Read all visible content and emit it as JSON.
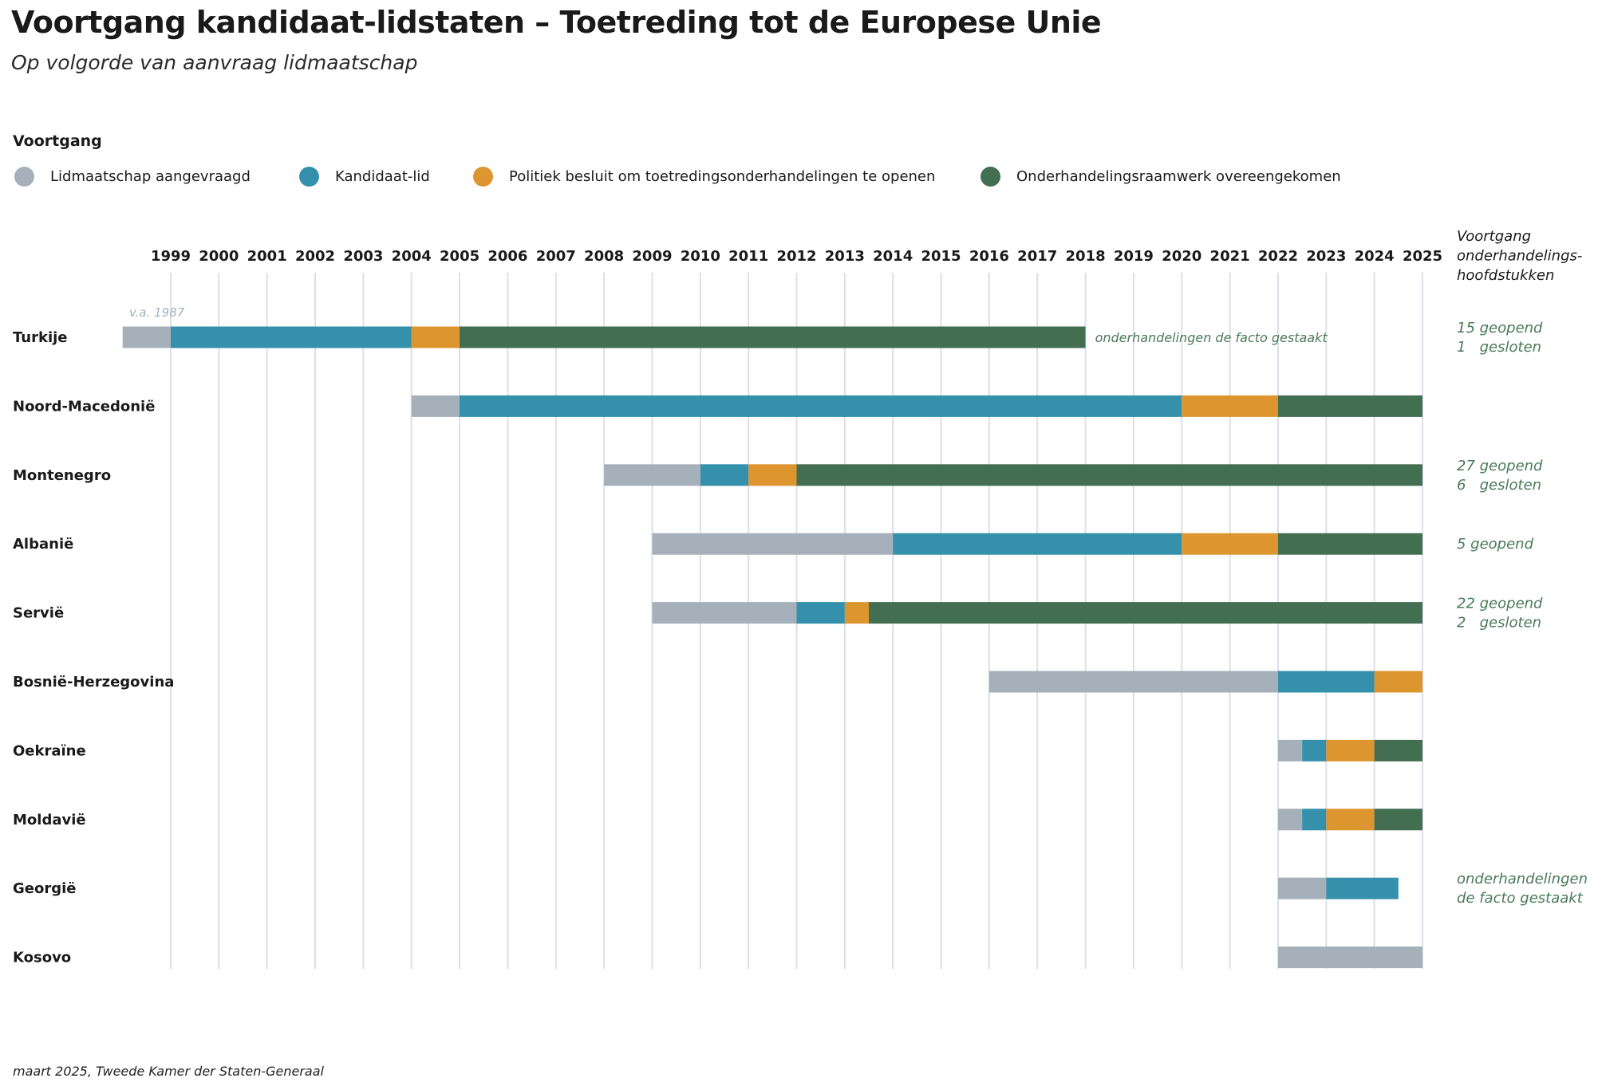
{
  "title": "Voortgang kandidaat-lidstaten – Toetreding tot de Europese Unie",
  "subtitle": "Op volgorde van aanvraag lidmaatschap",
  "footer": "maart 2025, Tweede Kamer der Staten-Generaal",
  "legend": {
    "title": "Voortgang",
    "items": [
      {
        "key": "aangevraagd",
        "label": "Lidmaatschap aangevraagd",
        "color": "#A5B0BA"
      },
      {
        "key": "kandidaat",
        "label": "Kandidaat-lid",
        "color": "#3490AB"
      },
      {
        "key": "besluit",
        "label": "Politiek besluit om toetredingsonderhandelingen te openen",
        "color": "#DD952F"
      },
      {
        "key": "raamwerk",
        "label": "Onderhandelingsraamwerk overeengekomen",
        "color": "#436E52"
      }
    ]
  },
  "chart_data": {
    "type": "bar",
    "subtype": "horizontal-stacked-timeline",
    "title": "Voortgang kandidaat-lidstaten – Toetreding tot de Europese Unie",
    "subtitle": "Op volgorde van aanvraag lidmaatschap",
    "xlabel": "",
    "ylabel": "",
    "xlim": [
      1999,
      2025
    ],
    "x_ticks": [
      1999,
      2000,
      2001,
      2002,
      2003,
      2004,
      2005,
      2006,
      2007,
      2008,
      2009,
      2010,
      2011,
      2012,
      2013,
      2014,
      2015,
      2016,
      2017,
      2018,
      2019,
      2020,
      2021,
      2022,
      2023,
      2024,
      2025
    ],
    "grid": true,
    "legend_position": "top-left",
    "right_column_header": [
      "Voortgang",
      "onderhandelings-",
      "hoofdstukken"
    ],
    "text_color_notes": "#4A7A5A",
    "text_color_early": "#A5B0BA",
    "categories": [
      "Turkije",
      "Noord-Macedonië",
      "Montenegro",
      "Albanië",
      "Servië",
      "Bosnië-Herzegovina",
      "Oekraïne",
      "Moldavië",
      "Georgië",
      "Kosovo"
    ],
    "rows": [
      {
        "country": "Turkije",
        "segments": [
          {
            "stage": "aangevraagd",
            "start": 1998,
            "end": 1999
          },
          {
            "stage": "kandidaat",
            "start": 1999,
            "end": 2004
          },
          {
            "stage": "besluit",
            "start": 2004,
            "end": 2005
          },
          {
            "stage": "raamwerk",
            "start": 2005,
            "end": 2018
          }
        ],
        "early_note": "v.a. 1987",
        "inline_note": "onderhandelingen de facto gestaakt",
        "chapters": [
          "15 geopend",
          "1   gesloten"
        ]
      },
      {
        "country": "Noord-Macedonië",
        "segments": [
          {
            "stage": "aangevraagd",
            "start": 2004,
            "end": 2005
          },
          {
            "stage": "kandidaat",
            "start": 2005,
            "end": 2020
          },
          {
            "stage": "besluit",
            "start": 2020,
            "end": 2022
          },
          {
            "stage": "raamwerk",
            "start": 2022,
            "end": 2025
          }
        ],
        "chapters": []
      },
      {
        "country": "Montenegro",
        "segments": [
          {
            "stage": "aangevraagd",
            "start": 2008,
            "end": 2010
          },
          {
            "stage": "kandidaat",
            "start": 2010,
            "end": 2011
          },
          {
            "stage": "besluit",
            "start": 2011,
            "end": 2012
          },
          {
            "stage": "raamwerk",
            "start": 2012,
            "end": 2025
          }
        ],
        "chapters": [
          "27 geopend",
          "6   gesloten"
        ]
      },
      {
        "country": "Albanië",
        "segments": [
          {
            "stage": "aangevraagd",
            "start": 2009,
            "end": 2014
          },
          {
            "stage": "kandidaat",
            "start": 2014,
            "end": 2020
          },
          {
            "stage": "besluit",
            "start": 2020,
            "end": 2022
          },
          {
            "stage": "raamwerk",
            "start": 2022,
            "end": 2025
          }
        ],
        "chapters": [
          "5 geopend"
        ]
      },
      {
        "country": "Servië",
        "segments": [
          {
            "stage": "aangevraagd",
            "start": 2009,
            "end": 2012
          },
          {
            "stage": "kandidaat",
            "start": 2012,
            "end": 2013
          },
          {
            "stage": "besluit",
            "start": 2013,
            "end": 2013.5
          },
          {
            "stage": "raamwerk",
            "start": 2013.5,
            "end": 2025
          }
        ],
        "chapters": [
          "22 geopend",
          "2   gesloten"
        ]
      },
      {
        "country": "Bosnië-Herzegovina",
        "segments": [
          {
            "stage": "aangevraagd",
            "start": 2016,
            "end": 2022
          },
          {
            "stage": "kandidaat",
            "start": 2022,
            "end": 2024
          },
          {
            "stage": "besluit",
            "start": 2024,
            "end": 2025
          }
        ],
        "chapters": []
      },
      {
        "country": "Oekraïne",
        "segments": [
          {
            "stage": "aangevraagd",
            "start": 2022,
            "end": 2022.5
          },
          {
            "stage": "kandidaat",
            "start": 2022.5,
            "end": 2023
          },
          {
            "stage": "besluit",
            "start": 2023,
            "end": 2024
          },
          {
            "stage": "raamwerk",
            "start": 2024,
            "end": 2025
          }
        ],
        "chapters": []
      },
      {
        "country": "Moldavië",
        "segments": [
          {
            "stage": "aangevraagd",
            "start": 2022,
            "end": 2022.5
          },
          {
            "stage": "kandidaat",
            "start": 2022.5,
            "end": 2023
          },
          {
            "stage": "besluit",
            "start": 2023,
            "end": 2024
          },
          {
            "stage": "raamwerk",
            "start": 2024,
            "end": 2025
          }
        ],
        "chapters": []
      },
      {
        "country": "Georgië",
        "segments": [
          {
            "stage": "aangevraagd",
            "start": 2022,
            "end": 2023
          },
          {
            "stage": "kandidaat",
            "start": 2023,
            "end": 2024.5
          }
        ],
        "chapters": [
          "onderhandelingen",
          "de facto gestaakt"
        ]
      },
      {
        "country": "Kosovo",
        "segments": [
          {
            "stage": "aangevraagd",
            "start": 2022,
            "end": 2025
          }
        ],
        "chapters": []
      }
    ]
  }
}
